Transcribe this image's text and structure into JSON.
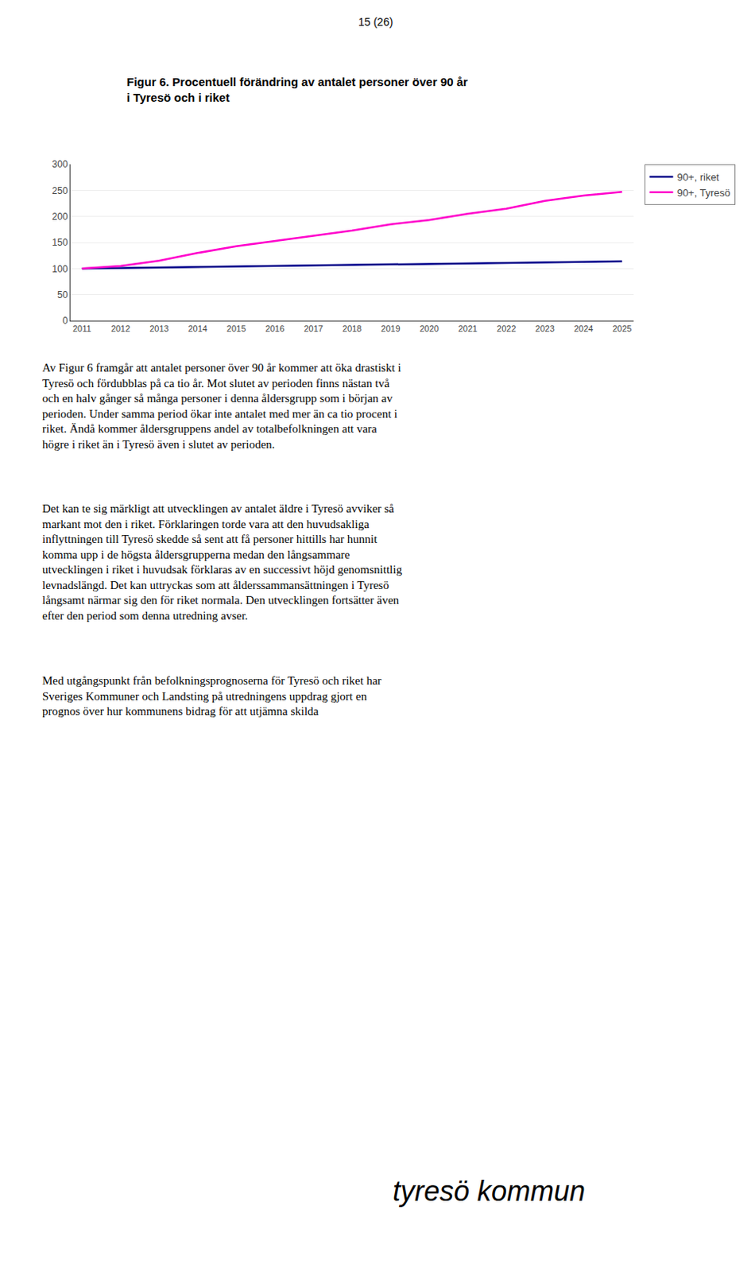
{
  "chart_data": {
    "type": "line",
    "title": "Figur 6. Procentuell förändring av antalet personer över 90 år\ni Tyresö och i riket",
    "x": [
      2011,
      2012,
      2013,
      2014,
      2015,
      2016,
      2017,
      2018,
      2019,
      2020,
      2021,
      2022,
      2023,
      2024,
      2025
    ],
    "series": [
      {
        "name": "90+, riket",
        "color": "#00008B",
        "values": [
          100,
          101,
          102,
          103,
          104,
          105,
          106,
          107,
          108,
          109,
          110,
          111,
          112,
          113,
          114
        ]
      },
      {
        "name": "90+, Tyresö",
        "color": "#FF00CC",
        "values": [
          100,
          105,
          115,
          130,
          143,
          153,
          163,
          173,
          185,
          193,
          205,
          215,
          230,
          240,
          247
        ]
      }
    ],
    "xlim": [
      2010.7,
      2025.3
    ],
    "xticks": [
      2011,
      2012,
      2013,
      2014,
      2015,
      2016,
      2017,
      2018,
      2019,
      2020,
      2021,
      2022,
      2023,
      2024,
      2025
    ],
    "ylim": [
      0,
      300
    ],
    "yticks": [
      0,
      50,
      100,
      150,
      200,
      250,
      300
    ],
    "grid": true,
    "legend": "right",
    "annotations": [
      "15 (26)",
      "Av Figur 6 framgår att antalet personer över 90 år kommer att öka drastiskt i\nTyresö och fördubblas på ca tio år. Mot slutet av perioden finns nästan två\noch en halv gånger så många personer i denna åldersgrupp som i början av\nperioden. Under samma period ökar inte antalet med mer än ca tio procent i\nriket. Ändå kommer åldersgruppens andel av totalbefolkningen att vara\nhögre i riket än i Tyresö även i slutet av perioden.",
      "Det kan te sig märkligt att utvecklingen av antalet äldre i Tyresö avviker så\nmarkant mot den i riket. Förklaringen torde vara att den huvudsakliga\ninflyttningen till Tyresö skedde så sent att få personer hittills har hunnit\nkomma upp i de högsta åldersgrupperna medan den långsammare\nutvecklingen i riket i huvudsak förklaras av en successivt höjd genomsnittlig\nlevnadslängd. Det kan uttryckas som att ålderssammansättningen i Tyresö\nlångsamt närmar sig den för riket normala. Den utvecklingen fortsätter även\nefter den period som denna utredning avser.",
      "Med utgångspunkt från befolkningsprognoserna för Tyresö och riket har\nSveriges Kommuner och Landsting på utredningens uppdrag gjort en\nprognos över hur kommunens bidrag för att utjämna skilda",
      "tyresö kommun"
    ]
  }
}
